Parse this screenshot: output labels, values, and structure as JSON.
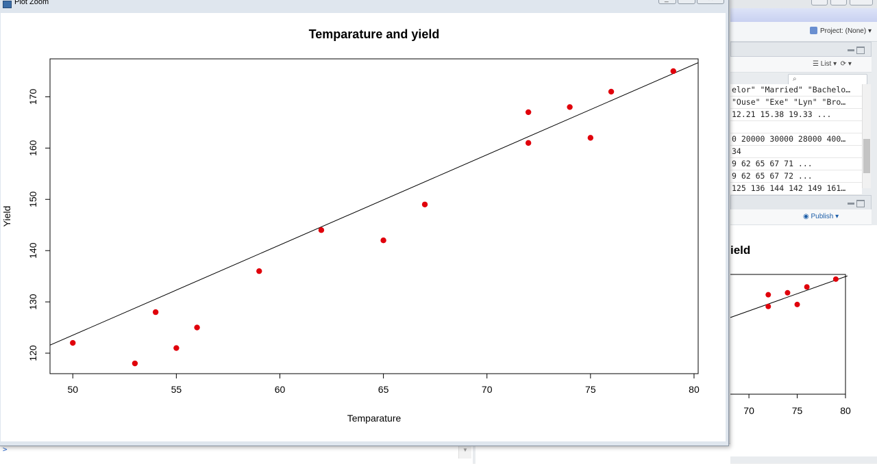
{
  "window": {
    "title": "Plot Zoom"
  },
  "background": {
    "project_label": "Project: (None)",
    "list_button": "List",
    "publish_button": "Publish",
    "console_prompt": ">",
    "environment_rows": [
      "elor\" \"Married\" \"Bachelo…",
      "\"Ouse\" \"Exe\" \"Lyn\" \"Bro…",
      "12.21 15.38 19.33 ...",
      "",
      "0 20000 30000 28000 400…",
      "34",
      "9 62 65 67 71 ...",
      "9 62 65 67 72 ...",
      "125 136 144 142 149 161…"
    ],
    "mini_plot_title_fragment": "ield",
    "mini_plot_x_ticks": [
      "70",
      "75",
      "80"
    ]
  },
  "chart_data": {
    "type": "scatter",
    "title": "Temparature and yield",
    "xlabel": "Temparature",
    "ylabel": "Yield",
    "xlim": [
      48.9,
      80.2
    ],
    "ylim": [
      116.0,
      177.4
    ],
    "xticks": [
      50,
      55,
      60,
      65,
      70,
      75,
      80
    ],
    "yticks": [
      120,
      130,
      140,
      150,
      160,
      170
    ],
    "grid": false,
    "point_color": "#e0000b",
    "points": [
      {
        "x": 50,
        "y": 122
      },
      {
        "x": 53,
        "y": 118
      },
      {
        "x": 54,
        "y": 128
      },
      {
        "x": 55,
        "y": 121
      },
      {
        "x": 56,
        "y": 125
      },
      {
        "x": 59,
        "y": 136
      },
      {
        "x": 62,
        "y": 144
      },
      {
        "x": 65,
        "y": 142
      },
      {
        "x": 67,
        "y": 149
      },
      {
        "x": 72,
        "y": 167
      },
      {
        "x": 72,
        "y": 161
      },
      {
        "x": 74,
        "y": 168
      },
      {
        "x": 75,
        "y": 162
      },
      {
        "x": 76,
        "y": 171
      },
      {
        "x": 79,
        "y": 175
      }
    ],
    "regression_line": {
      "intercept": 35.5,
      "slope": 1.76
    },
    "mini_points": [
      {
        "x": 72,
        "y": 167
      },
      {
        "x": 72,
        "y": 161
      },
      {
        "x": 74,
        "y": 168
      },
      {
        "x": 75,
        "y": 162
      },
      {
        "x": 76,
        "y": 171
      },
      {
        "x": 79,
        "y": 175
      }
    ]
  }
}
